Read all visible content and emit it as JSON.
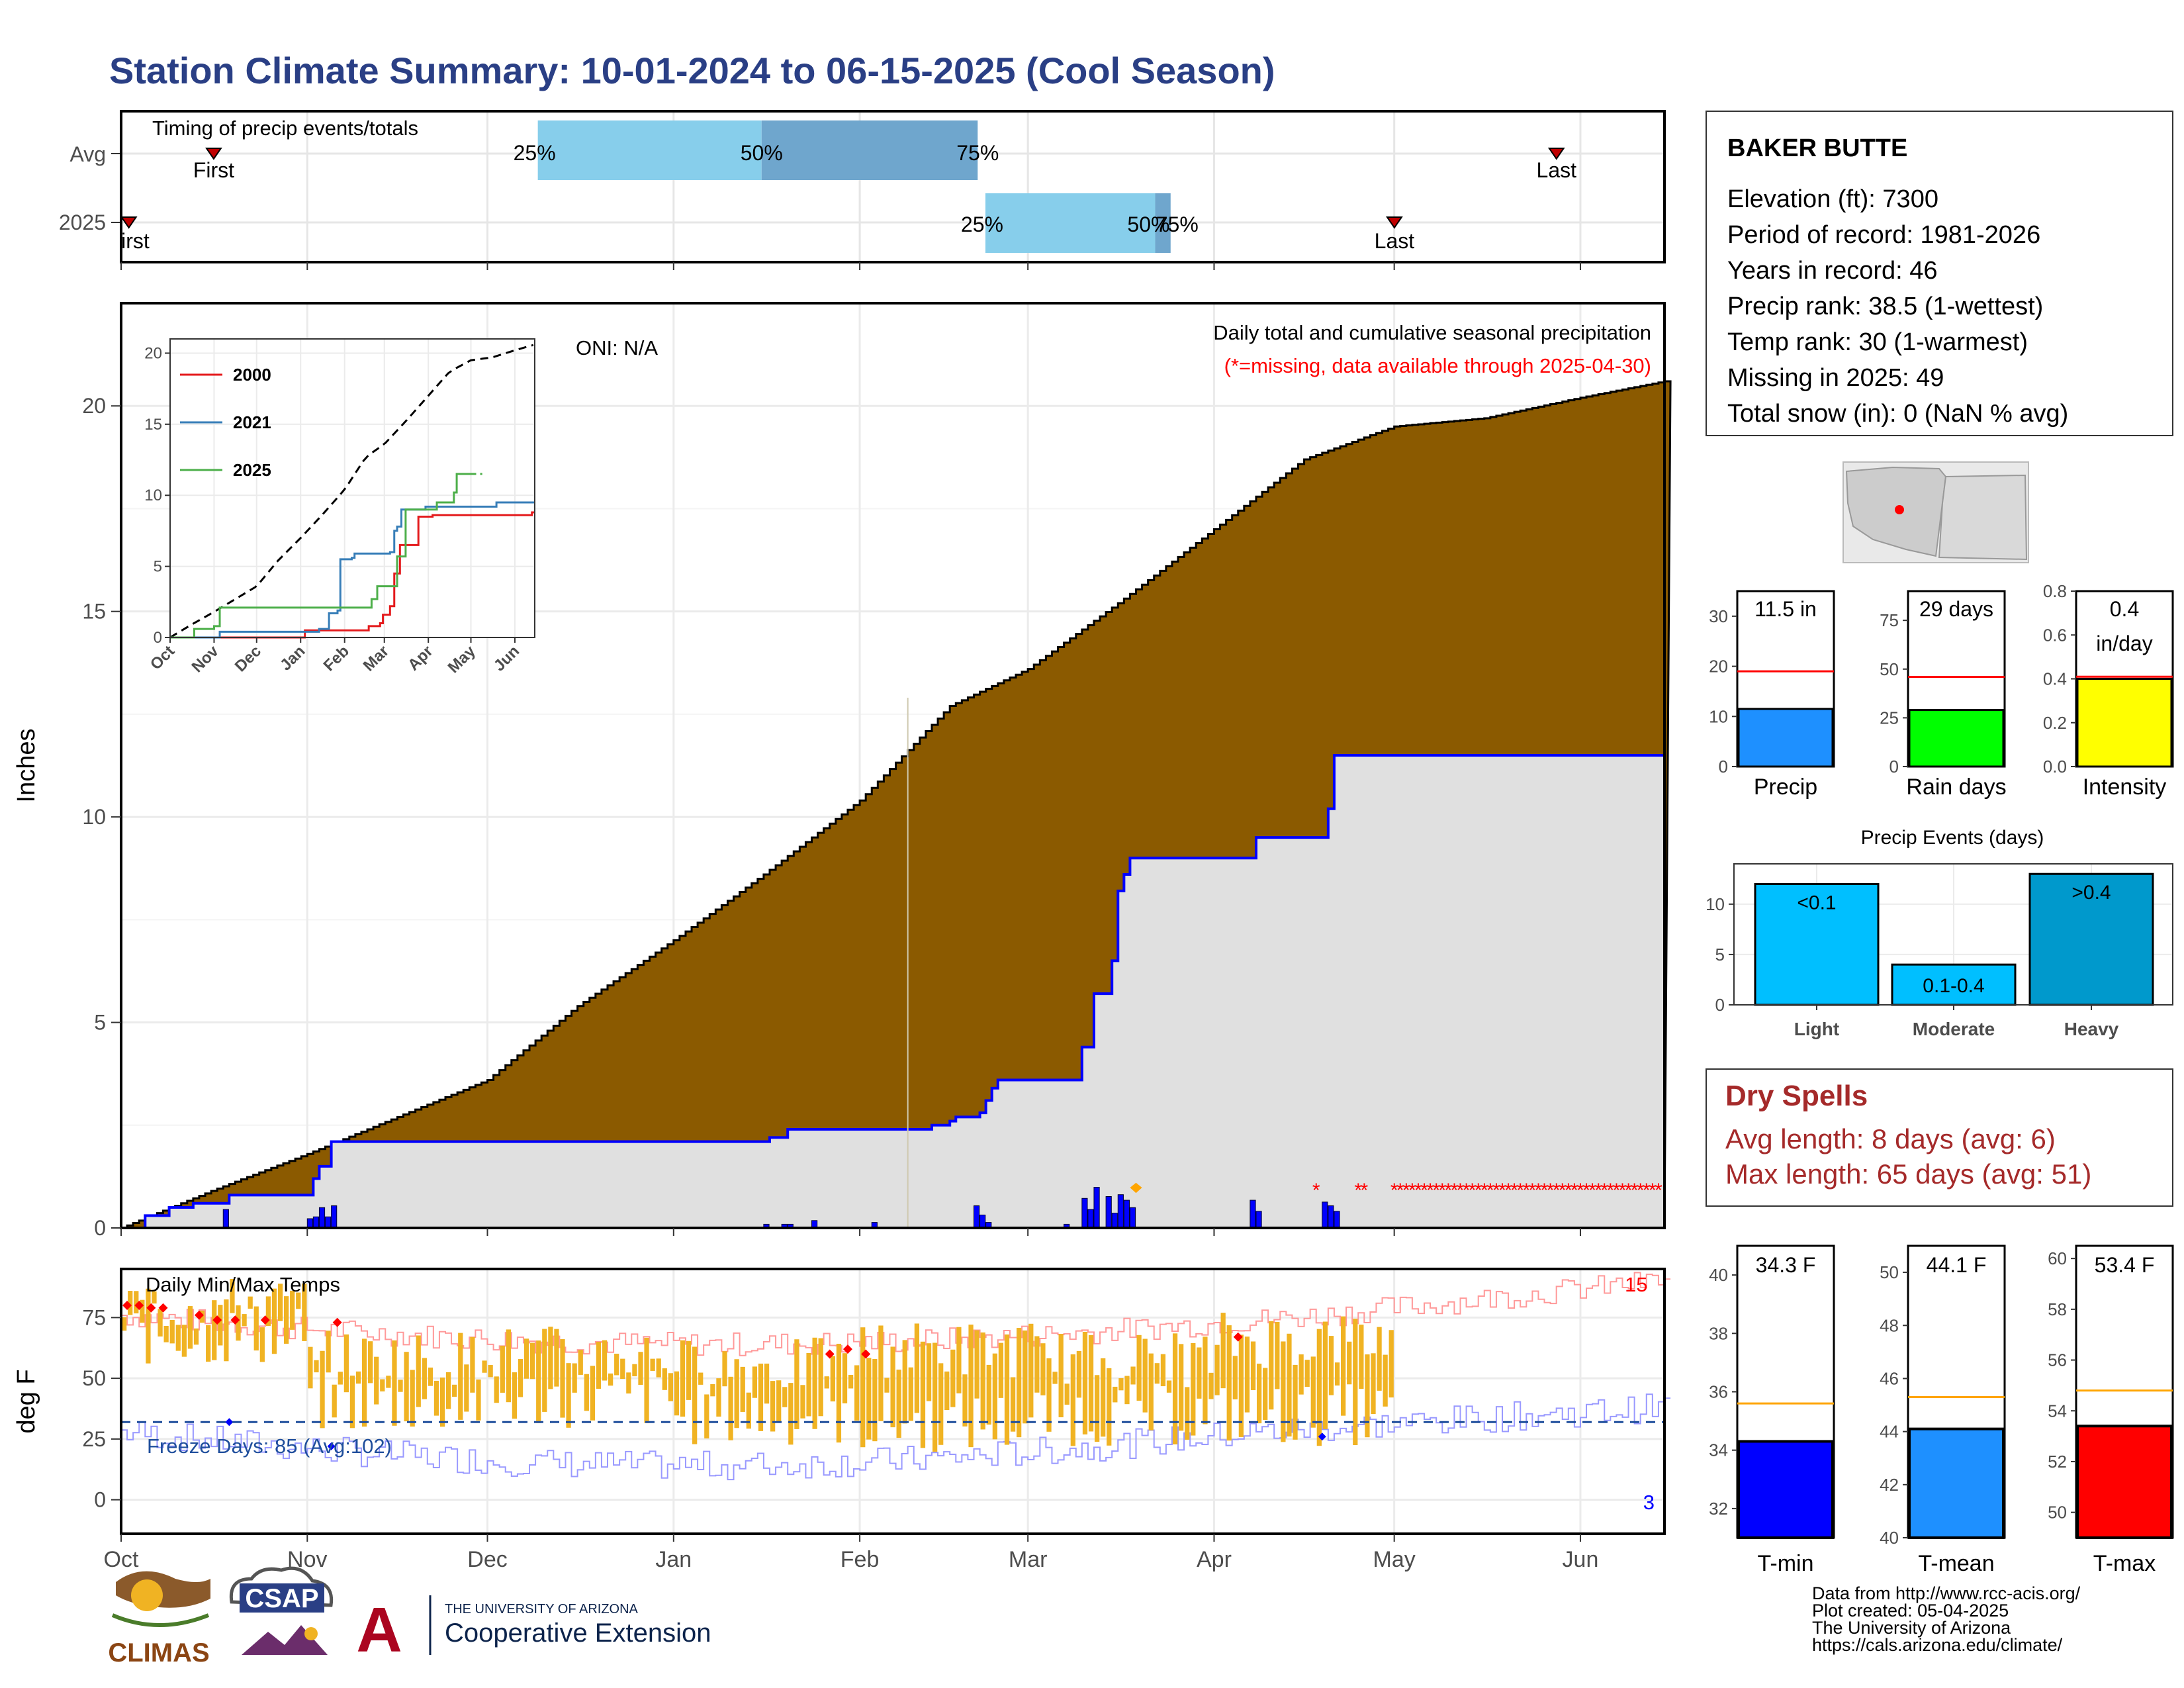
{
  "title": "Station Climate Summary: 10-01-2024 to 06-15-2025 (Cool Season)",
  "colors": {
    "title": "#2a3f85",
    "cum_avg": "#8b5a00",
    "cum_obs": "#0000ff",
    "light_blue": "#87ceeb",
    "steel_blue": "#6fa6cd",
    "dry_red": "#a52a2a",
    "temp_bar": "#f0b323",
    "missing": "#ff0000"
  },
  "timing": {
    "label": "Timing of precip events/totals",
    "rows": [
      "Avg",
      "2025"
    ],
    "avg": {
      "first_label": "First",
      "last_label": "Last",
      "p25": "25%",
      "p50": "50%",
      "p75": "75%"
    },
    "y2025": {
      "first_label": "First",
      "last_label": "Last",
      "p25": "25%",
      "p50": "50%",
      "p75": "75%"
    }
  },
  "precip_panel": {
    "ylabel": "Inches",
    "oni": "ONI: N/A",
    "caption": "Daily total and cumulative seasonal precipitation",
    "missing_note": "(*=missing, data available through 2025-04-30)",
    "y_ticks": [
      "0",
      "5",
      "10",
      "15",
      "20"
    ]
  },
  "inset": {
    "y_ticks": [
      "0",
      "5",
      "10",
      "15",
      "20"
    ],
    "x_ticks": [
      "Oct",
      "Nov",
      "Dec",
      "Jan",
      "Feb",
      "Mar",
      "Apr",
      "May",
      "Jun"
    ],
    "legend": [
      "2000",
      "2021",
      "2025"
    ],
    "legend_colors": [
      "#e41a1c",
      "#377eb8",
      "#4daf4a"
    ]
  },
  "temp_panel": {
    "ylabel": "deg F",
    "label": "Daily Min/Max Temps",
    "freeze": "Freeze Days: 85 (Avg:102)",
    "y_ticks": [
      "0",
      "25",
      "50",
      "75"
    ],
    "max_count": "15",
    "min_count": "3"
  },
  "x_axis": [
    "Oct",
    "Nov",
    "Dec",
    "Jan",
    "Feb",
    "Mar",
    "Apr",
    "May",
    "Jun"
  ],
  "station": {
    "name": "BAKER BUTTE",
    "lines": [
      "Elevation (ft): 7300",
      "Period of record: 1981-2026",
      "Years in record: 46",
      "Precip rank: 38.5 (1-wettest)",
      "Temp rank: 30 (1-warmest)",
      "Missing in 2025: 49",
      "Total snow (in): 0 (NaN % avg)"
    ]
  },
  "mini_bars": [
    {
      "label": "Precip",
      "value_text": "11.5 in",
      "ticks": [
        "0",
        "10",
        "20",
        "30"
      ],
      "color": "#1e90ff"
    },
    {
      "label": "Rain days",
      "value_text": "29 days",
      "ticks": [
        "0",
        "25",
        "50",
        "75"
      ],
      "color": "#00ff00"
    },
    {
      "label": "Intensity",
      "value_text": "0.4",
      "value_text2": "in/day",
      "ticks": [
        "0.0",
        "0.2",
        "0.4",
        "0.6",
        "0.8"
      ],
      "color": "#ffff00"
    }
  ],
  "precip_events": {
    "title": "Precip Events (days)",
    "categories": [
      "Light",
      "Moderate",
      "Heavy"
    ],
    "bar_labels": [
      "<0.1",
      "0.1-0.4",
      ">0.4"
    ],
    "values": [
      12,
      4,
      13
    ],
    "y_ticks": [
      "0",
      "5",
      "10"
    ],
    "colors": [
      "#00bfff",
      "#00bfff",
      "#0099cc"
    ]
  },
  "dry_spells": {
    "title": "Dry Spells",
    "avg": "Avg length: 8 days (avg: 6)",
    "max": "Max length: 65 days (avg: 51)"
  },
  "temp_bars": [
    {
      "label": "T-min",
      "value_text": "34.3 F",
      "ticks": [
        "32",
        "34",
        "36",
        "38",
        "40"
      ],
      "color": "#0000ff"
    },
    {
      "label": "T-mean",
      "value_text": "44.1 F",
      "ticks": [
        "40",
        "42",
        "44",
        "46",
        "48",
        "50"
      ],
      "color": "#1e90ff"
    },
    {
      "label": "T-max",
      "value_text": "53.4 F",
      "ticks": [
        "50",
        "52",
        "54",
        "56",
        "58",
        "60"
      ],
      "color": "#ff0000"
    }
  ],
  "footer": [
    "Data from http://www.rcc-acis.org/",
    "Plot created: 05-04-2025",
    "The University of Arizona",
    "https://cals.arizona.edu/climate/"
  ],
  "logos": {
    "climas": "CLIMAS",
    "csap": "CSAP",
    "ua_small": "THE UNIVERSITY OF ARIZONA",
    "ua_big": "Cooperative Extension",
    "ua_letter": "A"
  },
  "chart_data": [
    {
      "type": "area",
      "title": "Daily total and cumulative seasonal precipitation",
      "ylabel": "Inches",
      "ylim": [
        0,
        22.5
      ],
      "x": [
        "Oct 1",
        "Oct 16",
        "Nov 1",
        "Nov 16",
        "Dec 1",
        "Dec 16",
        "Jan 1",
        "Jan 16",
        "Feb 1",
        "Feb 16",
        "Mar 1",
        "Mar 16",
        "Apr 1",
        "Apr 16",
        "May 1",
        "May 16",
        "Jun 1",
        "Jun 15"
      ],
      "series": [
        {
          "name": "avg_cumulative",
          "values": [
            0,
            0.9,
            1.8,
            2.7,
            3.6,
            5.4,
            7.0,
            8.6,
            10.4,
            12.7,
            13.6,
            15.2,
            17.0,
            18.7,
            19.5,
            19.7,
            20.2,
            20.6
          ]
        },
        {
          "name": "2025_cumulative",
          "values": [
            0,
            0.8,
            2.1,
            2.1,
            2.1,
            2.1,
            2.2,
            2.5,
            2.6,
            2.7,
            3.6,
            9.0,
            9.5,
            11.5,
            11.5,
            11.5,
            11.5,
            11.5
          ]
        }
      ]
    },
    {
      "type": "bar",
      "title": "Daily Min/Max Temps",
      "ylabel": "deg F",
      "ylim": [
        -15,
        95
      ],
      "x": [
        "Oct",
        "Nov",
        "Dec",
        "Jan",
        "Feb",
        "Mar",
        "Apr",
        "May"
      ],
      "series": [
        {
          "name": "min",
          "values": [
            68,
            40,
            42,
            35,
            32,
            35,
            35,
            32
          ]
        },
        {
          "name": "max",
          "values": [
            80,
            58,
            60,
            55,
            62,
            58,
            66,
            60
          ]
        },
        {
          "name": "freeze_line",
          "values": [
            32,
            32,
            32,
            32,
            32,
            32,
            32,
            32
          ]
        }
      ]
    },
    {
      "type": "bar",
      "title": "Precip Events (days)",
      "categories": [
        "Light",
        "Moderate",
        "Heavy"
      ],
      "values": [
        12,
        4,
        13
      ],
      "ylim": [
        0,
        14
      ]
    },
    {
      "type": "bar",
      "categories": [
        "Precip",
        "Rain days",
        "Intensity"
      ],
      "values": [
        11.5,
        29,
        0.4
      ],
      "averages": [
        19,
        46,
        0.41
      ]
    },
    {
      "type": "bar",
      "categories": [
        "T-min",
        "T-mean",
        "T-max"
      ],
      "values": [
        34.3,
        44.1,
        53.4
      ],
      "averages": [
        35.6,
        45.3,
        54.8
      ]
    }
  ]
}
